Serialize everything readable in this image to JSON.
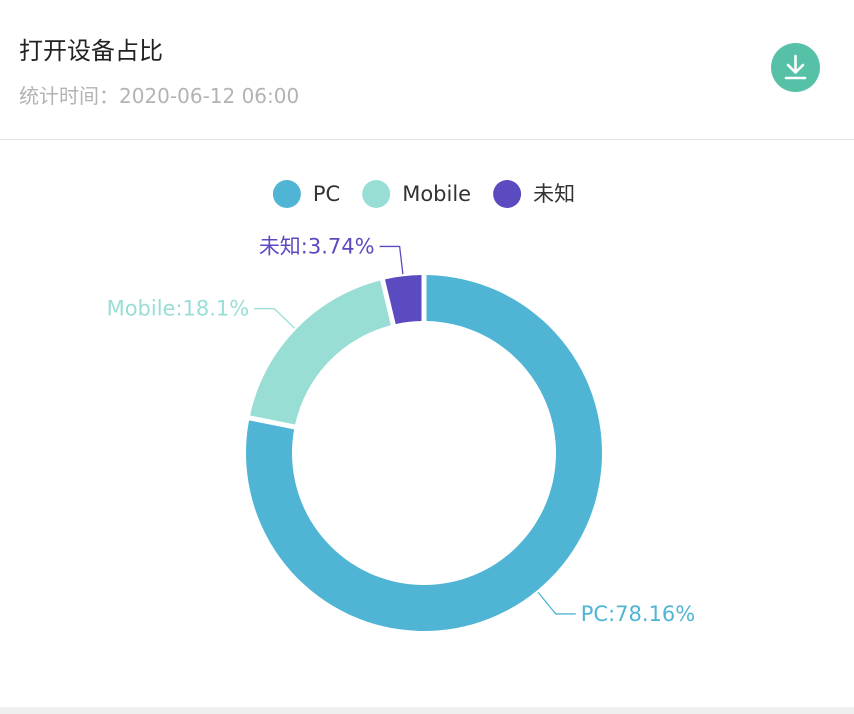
{
  "header": {
    "title": "打开设备占比",
    "subtitle": "统计时间：2020-06-12 06:00",
    "download_icon": "download-icon"
  },
  "colors": {
    "PC": "#50b5d5",
    "Mobile": "#99ded5",
    "未知": "#5b4bc0",
    "download_button": "#56c1a7",
    "label_PC": "#50b5d5",
    "label_Mobile": "#99ded5",
    "label_未知": "#5b4bc0"
  },
  "chart_data": {
    "type": "pie",
    "variant": "donut",
    "title": "打开设备占比",
    "legend": {
      "placement": "top-center",
      "entries": [
        "PC",
        "Mobile",
        "未知"
      ]
    },
    "slices": [
      {
        "name": "PC",
        "value": 78.16,
        "label": "PC:78.16%"
      },
      {
        "name": "Mobile",
        "value": 18.1,
        "label": "Mobile:18.1%"
      },
      {
        "name": "未知",
        "value": 3.74,
        "label": "未知:3.74%"
      }
    ]
  }
}
